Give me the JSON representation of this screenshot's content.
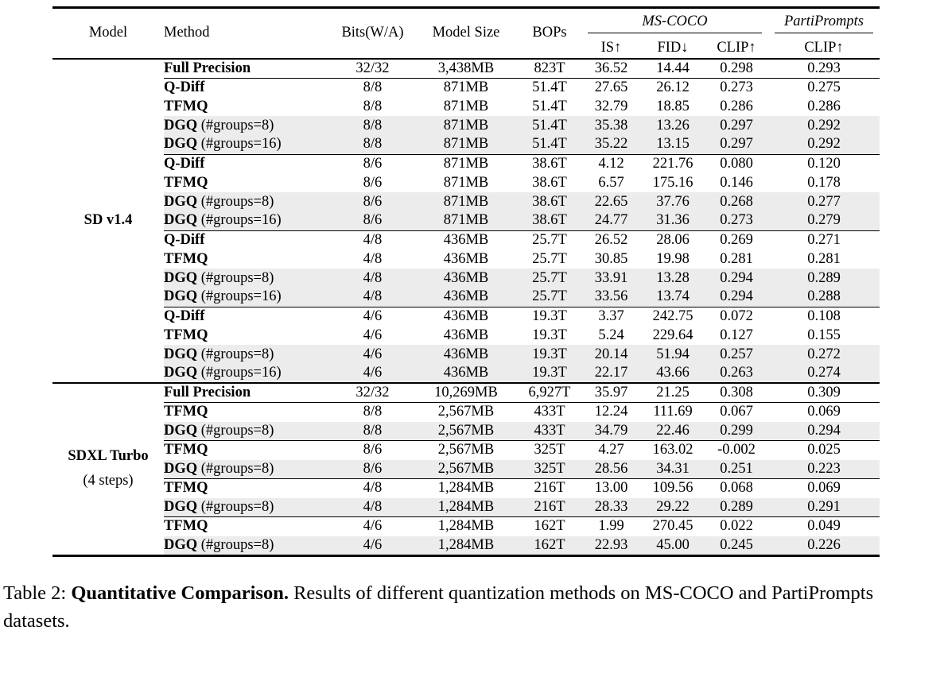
{
  "header": {
    "model": "Model",
    "method": "Method",
    "bits": "Bits(W/A)",
    "model_size": "Model Size",
    "bops": "BOPs",
    "group_mscoco": "MS-COCO",
    "group_partiprompts": "PartiPrompts",
    "sub_is": "IS↑",
    "sub_fid": "FID↓",
    "sub_clip": "CLIP↑",
    "sub_pp_clip": "CLIP↑"
  },
  "colors": {
    "highlight_row": "#ececec",
    "text": "#000000",
    "background": "#ffffff"
  },
  "sections": [
    {
      "model_label": "SD v1.4",
      "model_sublabel": "",
      "groups": [
        {
          "rows": [
            {
              "method": "Full Precision",
              "suffix": "",
              "bits": "32/32",
              "size": "3,438MB",
              "bops": "823T",
              "metrics": [
                "36.52",
                "14.44",
                "0.298",
                "0.293"
              ],
              "bold": [
                false,
                false,
                false,
                false
              ],
              "hl": false
            }
          ]
        },
        {
          "rows": [
            {
              "method": "Q-Diff",
              "suffix": "",
              "bits": "8/8",
              "size": "871MB",
              "bops": "51.4T",
              "metrics": [
                "27.65",
                "26.12",
                "0.273",
                "0.275"
              ],
              "bold": [
                false,
                false,
                false,
                false
              ],
              "hl": false
            },
            {
              "method": "TFMQ",
              "suffix": "",
              "bits": "8/8",
              "size": "871MB",
              "bops": "51.4T",
              "metrics": [
                "32.79",
                "18.85",
                "0.286",
                "0.286"
              ],
              "bold": [
                false,
                false,
                false,
                false
              ],
              "hl": false
            },
            {
              "method": "DGQ",
              "suffix": " (#groups=8)",
              "bits": "8/8",
              "size": "871MB",
              "bops": "51.4T",
              "metrics": [
                "35.38",
                "13.26",
                "0.297",
                "0.292"
              ],
              "bold": [
                true,
                false,
                true,
                true
              ],
              "hl": true
            },
            {
              "method": "DGQ",
              "suffix": " (#groups=16)",
              "bits": "8/8",
              "size": "871MB",
              "bops": "51.4T",
              "metrics": [
                "35.22",
                "13.15",
                "0.297",
                "0.292"
              ],
              "bold": [
                false,
                true,
                true,
                true
              ],
              "hl": true
            }
          ]
        },
        {
          "rows": [
            {
              "method": "Q-Diff",
              "suffix": "",
              "bits": "8/6",
              "size": "871MB",
              "bops": "38.6T",
              "metrics": [
                "4.12",
                "221.76",
                "0.080",
                "0.120"
              ],
              "bold": [
                false,
                false,
                false,
                false
              ],
              "hl": false
            },
            {
              "method": "TFMQ",
              "suffix": "",
              "bits": "8/6",
              "size": "871MB",
              "bops": "38.6T",
              "metrics": [
                "6.57",
                "175.16",
                "0.146",
                "0.178"
              ],
              "bold": [
                false,
                false,
                false,
                false
              ],
              "hl": false
            },
            {
              "method": "DGQ",
              "suffix": " (#groups=8)",
              "bits": "8/6",
              "size": "871MB",
              "bops": "38.6T",
              "metrics": [
                "22.65",
                "37.76",
                "0.268",
                "0.277"
              ],
              "bold": [
                false,
                false,
                false,
                false
              ],
              "hl": true
            },
            {
              "method": "DGQ",
              "suffix": " (#groups=16)",
              "bits": "8/6",
              "size": "871MB",
              "bops": "38.6T",
              "metrics": [
                "24.77",
                "31.36",
                "0.273",
                "0.279"
              ],
              "bold": [
                true,
                true,
                true,
                true
              ],
              "hl": true
            }
          ]
        },
        {
          "rows": [
            {
              "method": "Q-Diff",
              "suffix": "",
              "bits": "4/8",
              "size": "436MB",
              "bops": "25.7T",
              "metrics": [
                "26.52",
                "28.06",
                "0.269",
                "0.271"
              ],
              "bold": [
                false,
                false,
                false,
                false
              ],
              "hl": false
            },
            {
              "method": "TFMQ",
              "suffix": "",
              "bits": "4/8",
              "size": "436MB",
              "bops": "25.7T",
              "metrics": [
                "30.85",
                "19.98",
                "0.281",
                "0.281"
              ],
              "bold": [
                false,
                false,
                false,
                false
              ],
              "hl": false
            },
            {
              "method": "DGQ",
              "suffix": " (#groups=8)",
              "bits": "4/8",
              "size": "436MB",
              "bops": "25.7T",
              "metrics": [
                "33.91",
                "13.28",
                "0.294",
                "0.289"
              ],
              "bold": [
                true,
                true,
                true,
                true
              ],
              "hl": true
            },
            {
              "method": "DGQ",
              "suffix": " (#groups=16)",
              "bits": "4/8",
              "size": "436MB",
              "bops": "25.7T",
              "metrics": [
                "33.56",
                "13.74",
                "0.294",
                "0.288"
              ],
              "bold": [
                false,
                false,
                true,
                false
              ],
              "hl": true
            }
          ]
        },
        {
          "rows": [
            {
              "method": "Q-Diff",
              "suffix": "",
              "bits": "4/6",
              "size": "436MB",
              "bops": "19.3T",
              "metrics": [
                "3.37",
                "242.75",
                "0.072",
                "0.108"
              ],
              "bold": [
                false,
                false,
                false,
                false
              ],
              "hl": false
            },
            {
              "method": "TFMQ",
              "suffix": "",
              "bits": "4/6",
              "size": "436MB",
              "bops": "19.3T",
              "metrics": [
                "5.24",
                "229.64",
                "0.127",
                "0.155"
              ],
              "bold": [
                false,
                false,
                false,
                false
              ],
              "hl": false
            },
            {
              "method": "DGQ",
              "suffix": " (#groups=8)",
              "bits": "4/6",
              "size": "436MB",
              "bops": "19.3T",
              "metrics": [
                "20.14",
                "51.94",
                "0.257",
                "0.272"
              ],
              "bold": [
                false,
                false,
                false,
                false
              ],
              "hl": true
            },
            {
              "method": "DGQ",
              "suffix": " (#groups=16)",
              "bits": "4/6",
              "size": "436MB",
              "bops": "19.3T",
              "metrics": [
                "22.17",
                "43.66",
                "0.263",
                "0.274"
              ],
              "bold": [
                true,
                true,
                true,
                true
              ],
              "hl": true
            }
          ]
        }
      ]
    },
    {
      "model_label": "SDXL Turbo",
      "model_sublabel": "(4 steps)",
      "groups": [
        {
          "rows": [
            {
              "method": "Full Precision",
              "suffix": "",
              "bits": "32/32",
              "size": "10,269MB",
              "bops": "6,927T",
              "metrics": [
                "35.97",
                "21.25",
                "0.308",
                "0.309"
              ],
              "bold": [
                false,
                false,
                false,
                false
              ],
              "hl": false
            }
          ]
        },
        {
          "rows": [
            {
              "method": "TFMQ",
              "suffix": "",
              "bits": "8/8",
              "size": "2,567MB",
              "bops": "433T",
              "metrics": [
                "12.24",
                "111.69",
                "0.067",
                "0.069"
              ],
              "bold": [
                false,
                false,
                false,
                false
              ],
              "hl": false
            },
            {
              "method": "DGQ",
              "suffix": " (#groups=8)",
              "bits": "8/8",
              "size": "2,567MB",
              "bops": "433T",
              "metrics": [
                "34.79",
                "22.46",
                "0.299",
                "0.294"
              ],
              "bold": [
                true,
                true,
                true,
                true
              ],
              "hl": true
            }
          ]
        },
        {
          "rows": [
            {
              "method": "TFMQ",
              "suffix": "",
              "bits": "8/6",
              "size": "2,567MB",
              "bops": "325T",
              "metrics": [
                "4.27",
                "163.02",
                "-0.002",
                "0.025"
              ],
              "bold": [
                false,
                false,
                false,
                false
              ],
              "hl": false
            },
            {
              "method": "DGQ",
              "suffix": " (#groups=8)",
              "bits": "8/6",
              "size": "2,567MB",
              "bops": "325T",
              "metrics": [
                "28.56",
                "34.31",
                "0.251",
                "0.223"
              ],
              "bold": [
                true,
                true,
                true,
                true
              ],
              "hl": true
            }
          ]
        },
        {
          "rows": [
            {
              "method": "TFMQ",
              "suffix": "",
              "bits": "4/8",
              "size": "1,284MB",
              "bops": "216T",
              "metrics": [
                "13.00",
                "109.56",
                "0.068",
                "0.069"
              ],
              "bold": [
                false,
                false,
                false,
                false
              ],
              "hl": false
            },
            {
              "method": "DGQ",
              "suffix": " (#groups=8)",
              "bits": "4/8",
              "size": "1,284MB",
              "bops": "216T",
              "metrics": [
                "28.33",
                "29.22",
                "0.289",
                "0.291"
              ],
              "bold": [
                true,
                true,
                true,
                true
              ],
              "hl": true
            }
          ]
        },
        {
          "rows": [
            {
              "method": "TFMQ",
              "suffix": "",
              "bits": "4/6",
              "size": "1,284MB",
              "bops": "162T",
              "metrics": [
                "1.99",
                "270.45",
                "0.022",
                "0.049"
              ],
              "bold": [
                false,
                false,
                false,
                false
              ],
              "hl": false
            },
            {
              "method": "DGQ",
              "suffix": " (#groups=8)",
              "bits": "4/6",
              "size": "1,284MB",
              "bops": "162T",
              "metrics": [
                "22.93",
                "45.00",
                "0.245",
                "0.226"
              ],
              "bold": [
                true,
                true,
                true,
                true
              ],
              "hl": true
            }
          ]
        }
      ]
    }
  ],
  "caption": {
    "prefix": "Table 2: ",
    "bold": "Quantitative Comparison.",
    "rest": " Results of different quantization methods on MS-COCO and PartiPrompts datasets."
  }
}
